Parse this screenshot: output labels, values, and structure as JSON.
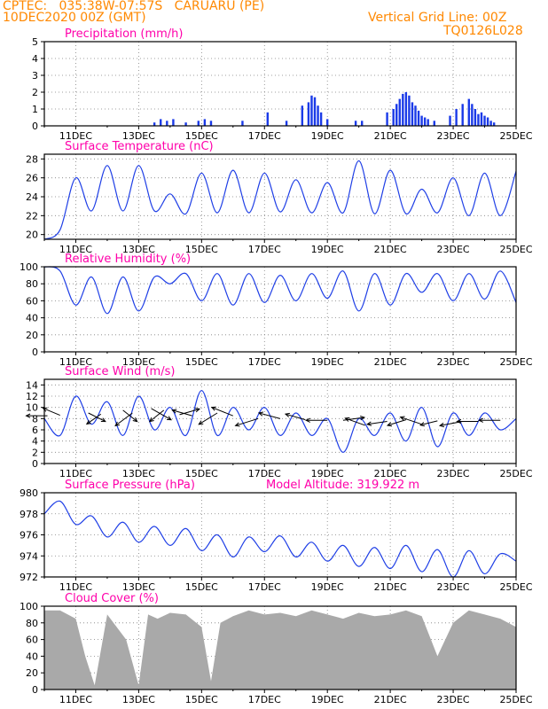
{
  "header": {
    "line1_left": "CPTEC:   035:38W-07:57S   CARUARU (PE)",
    "line2_left": "10DEC2020 00Z (GMT)",
    "line1_right": "Vertical Grid Line: 00Z",
    "line2_right": "TQ0126L028"
  },
  "colors": {
    "header_text": "#ff8800",
    "panel_title": "#ff00aa",
    "line_series": "#1f3fe6",
    "bar_series": "#1a3ae8",
    "cloud_fill": "#a9a9a9",
    "wind_arrows": "#000000",
    "grid": "#808080"
  },
  "chart_data": [
    {
      "type": "bar",
      "title": "Precipitation (mm/h)",
      "x_range": [
        "10DEC2020 00Z",
        "25DEC2020 00Z"
      ],
      "x_ticks": [
        "11DEC",
        "13DEC",
        "15DEC",
        "17DEC",
        "19DEC",
        "21DEC",
        "23DEC",
        "25DEC"
      ],
      "ylim": [
        0,
        5
      ],
      "y_ticks": [
        0,
        1,
        2,
        3,
        4,
        5
      ],
      "grid": true,
      "series": [
        {
          "x_day": [
            3.5,
            3.7,
            3.9,
            4.1,
            4.5,
            4.9,
            5.1,
            5.3,
            6.3,
            7.1,
            7.7,
            8.2,
            8.4,
            8.5,
            8.6,
            8.7,
            8.8,
            9.0,
            9.9,
            10.1,
            10.9,
            11.1,
            11.2,
            11.3,
            11.4,
            11.5,
            11.6,
            11.7,
            11.8,
            11.9,
            12.0,
            12.1,
            12.2,
            12.4,
            12.9,
            13.1,
            13.3,
            13.5,
            13.6,
            13.7,
            13.8,
            13.9,
            14.0,
            14.1,
            14.2,
            14.3
          ],
          "values": [
            0.2,
            0.4,
            0.3,
            0.4,
            0.2,
            0.3,
            0.4,
            0.3,
            0.3,
            0.8,
            0.3,
            1.2,
            1.4,
            1.8,
            1.7,
            1.2,
            0.8,
            0.4,
            0.3,
            0.3,
            0.8,
            1.0,
            1.3,
            1.6,
            1.9,
            2.0,
            1.8,
            1.4,
            1.2,
            0.9,
            0.6,
            0.5,
            0.4,
            0.3,
            0.6,
            1.0,
            1.3,
            1.6,
            1.3,
            1.0,
            0.7,
            0.8,
            0.6,
            0.5,
            0.3,
            0.2
          ]
        }
      ]
    },
    {
      "type": "line",
      "title": "Surface Temperature (nC)",
      "x_range": [
        "10DEC2020 00Z",
        "25DEC2020 00Z"
      ],
      "x_ticks": [
        "11DEC",
        "13DEC",
        "15DEC",
        "17DEC",
        "19DEC",
        "21DEC",
        "23DEC",
        "25DEC"
      ],
      "ylim": [
        19.5,
        28.5
      ],
      "y_ticks": [
        20,
        22,
        24,
        26,
        28
      ],
      "grid": true,
      "series": [
        {
          "x_day": [
            0,
            0.5,
            1.0,
            1.5,
            2.0,
            2.5,
            3.0,
            3.5,
            4.0,
            4.5,
            5.0,
            5.5,
            6.0,
            6.5,
            7.0,
            7.5,
            8.0,
            8.5,
            9.0,
            9.5,
            10.0,
            10.5,
            11.0,
            11.5,
            12.0,
            12.5,
            13.0,
            13.5,
            14.0,
            14.5,
            15.0
          ],
          "values": [
            19.5,
            20.5,
            26.0,
            22.5,
            27.3,
            22.5,
            27.3,
            22.5,
            24.3,
            22.2,
            26.5,
            22.3,
            26.8,
            22.3,
            26.5,
            22.4,
            25.8,
            22.3,
            25.5,
            22.3,
            27.8,
            22.2,
            26.8,
            22.2,
            24.8,
            22.3,
            26.0,
            22.0,
            26.5,
            22.0,
            26.7
          ]
        }
      ]
    },
    {
      "type": "line",
      "title": "Relative Humidity (%)",
      "x_range": [
        "10DEC2020 00Z",
        "25DEC2020 00Z"
      ],
      "x_ticks": [
        "11DEC",
        "13DEC",
        "15DEC",
        "17DEC",
        "19DEC",
        "21DEC",
        "23DEC",
        "25DEC"
      ],
      "ylim": [
        0,
        100
      ],
      "y_ticks": [
        0,
        20,
        40,
        60,
        80,
        100
      ],
      "grid": true,
      "series": [
        {
          "x_day": [
            0,
            0.5,
            1.0,
            1.5,
            2.0,
            2.5,
            3.0,
            3.5,
            4.0,
            4.5,
            5.0,
            5.5,
            6.0,
            6.5,
            7.0,
            7.5,
            8.0,
            8.5,
            9.0,
            9.5,
            10.0,
            10.5,
            11.0,
            11.5,
            12.0,
            12.5,
            13.0,
            13.5,
            14.0,
            14.5,
            15.0
          ],
          "values": [
            100,
            95,
            55,
            88,
            45,
            88,
            48,
            88,
            80,
            92,
            60,
            92,
            55,
            92,
            58,
            90,
            60,
            92,
            63,
            95,
            48,
            92,
            55,
            92,
            70,
            92,
            60,
            92,
            62,
            95,
            58
          ]
        }
      ]
    },
    {
      "type": "line",
      "title": "Surface Wind (m/s)",
      "x_range": [
        "10DEC2020 00Z",
        "25DEC2020 00Z"
      ],
      "x_ticks": [
        "11DEC",
        "13DEC",
        "15DEC",
        "17DEC",
        "19DEC",
        "21DEC",
        "23DEC",
        "25DEC"
      ],
      "ylim": [
        0,
        15
      ],
      "y_ticks": [
        0,
        2,
        4,
        6,
        8,
        10,
        12,
        14
      ],
      "grid": true,
      "series": [
        {
          "x_day": [
            0,
            0.5,
            1.0,
            1.5,
            2.0,
            2.5,
            3.0,
            3.5,
            4.0,
            4.5,
            5.0,
            5.5,
            6.0,
            6.5,
            7.0,
            7.5,
            8.0,
            8.5,
            9.0,
            9.5,
            10.0,
            10.5,
            11.0,
            11.5,
            12.0,
            12.5,
            13.0,
            13.5,
            14.0,
            14.5,
            15.0
          ],
          "values": [
            8,
            5,
            12,
            7,
            11,
            5,
            12,
            6,
            10,
            5,
            13,
            5,
            10,
            6,
            10,
            5,
            9,
            5,
            8,
            2,
            8,
            5,
            9,
            4,
            10,
            3,
            9,
            5,
            9,
            6,
            8
          ]
        }
      ],
      "wind_vectors": [
        [
          0.1,
          8.5,
          -15,
          0
        ],
        [
          0.5,
          8.6,
          -12,
          -5
        ],
        [
          1.4,
          9.0,
          12,
          6
        ],
        [
          1.8,
          8.8,
          -10,
          7
        ],
        [
          2.5,
          9.5,
          10,
          8
        ],
        [
          2.8,
          9.0,
          -12,
          9
        ],
        [
          3.4,
          9.8,
          14,
          8
        ],
        [
          3.8,
          9.5,
          -10,
          8
        ],
        [
          4.3,
          8.7,
          14,
          -4
        ],
        [
          4.7,
          8.5,
          -14,
          -4
        ],
        [
          5.5,
          9.0,
          -13,
          8
        ],
        [
          6.0,
          8.5,
          -15,
          -6
        ],
        [
          6.8,
          8.0,
          -16,
          5
        ],
        [
          7.5,
          8.0,
          -15,
          -4
        ],
        [
          8.3,
          7.8,
          -14,
          -4
        ],
        [
          9.0,
          7.7,
          -15,
          0
        ],
        [
          9.5,
          7.7,
          15,
          -2
        ],
        [
          10.2,
          6.8,
          -14,
          -5
        ],
        [
          10.9,
          7.5,
          -14,
          2
        ],
        [
          11.5,
          7.8,
          -13,
          4
        ],
        [
          12.0,
          7.0,
          -15,
          -5
        ],
        [
          12.5,
          7.6,
          -12,
          3
        ],
        [
          13.3,
          7.5,
          -16,
          3
        ],
        [
          13.8,
          7.5,
          -15,
          0
        ],
        [
          14.5,
          7.7,
          -15,
          0
        ]
      ]
    },
    {
      "type": "line",
      "title": "Surface Pressure (hPa)",
      "annotation": "Model Altitude: 319.922 m",
      "x_range": [
        "10DEC2020 00Z",
        "25DEC2020 00Z"
      ],
      "x_ticks": [
        "11DEC",
        "13DEC",
        "15DEC",
        "17DEC",
        "19DEC",
        "21DEC",
        "23DEC",
        "25DEC"
      ],
      "ylim": [
        972,
        980
      ],
      "y_ticks": [
        972,
        974,
        976,
        978,
        980
      ],
      "grid": true,
      "series": [
        {
          "x_day": [
            0,
            0.5,
            1.0,
            1.5,
            2.0,
            2.5,
            3.0,
            3.5,
            4.0,
            4.5,
            5.0,
            5.5,
            6.0,
            6.5,
            7.0,
            7.5,
            8.0,
            8.5,
            9.0,
            9.5,
            10.0,
            10.5,
            11.0,
            11.5,
            12.0,
            12.5,
            13.0,
            13.5,
            14.0,
            14.5,
            15.0
          ],
          "values": [
            978.0,
            979.2,
            977.0,
            977.8,
            975.8,
            977.2,
            975.3,
            976.8,
            975.0,
            976.6,
            974.5,
            976.0,
            973.9,
            975.8,
            974.4,
            975.9,
            973.9,
            975.3,
            973.5,
            975.0,
            973.0,
            974.8,
            972.8,
            975.0,
            972.5,
            974.6,
            972.0,
            974.5,
            972.3,
            974.2,
            973.5
          ]
        }
      ]
    },
    {
      "type": "area",
      "title": "Cloud Cover (%)",
      "x_range": [
        "10DEC2020 00Z",
        "25DEC2020 00Z"
      ],
      "x_ticks": [
        "11DEC",
        "13DEC",
        "15DEC",
        "17DEC",
        "19DEC",
        "21DEC",
        "23DEC",
        "25DEC"
      ],
      "ylim": [
        0,
        100
      ],
      "y_ticks": [
        0,
        20,
        40,
        60,
        80,
        100
      ],
      "grid": true,
      "series": [
        {
          "x_day": [
            0,
            0.5,
            1.0,
            1.3,
            1.6,
            2.0,
            2.3,
            2.6,
            3.0,
            3.3,
            3.6,
            4.0,
            4.5,
            5.0,
            5.3,
            5.6,
            6.0,
            6.5,
            7.0,
            7.5,
            8.0,
            8.5,
            9.0,
            9.5,
            10.0,
            10.5,
            11.0,
            11.5,
            12.0,
            12.5,
            13.0,
            13.5,
            14.0,
            14.5,
            15.0
          ],
          "values": [
            95,
            95,
            85,
            40,
            5,
            90,
            75,
            60,
            5,
            90,
            85,
            92,
            90,
            75,
            10,
            80,
            88,
            95,
            90,
            92,
            88,
            95,
            90,
            85,
            92,
            88,
            90,
            95,
            88,
            40,
            80,
            95,
            90,
            85,
            75
          ]
        }
      ]
    }
  ]
}
